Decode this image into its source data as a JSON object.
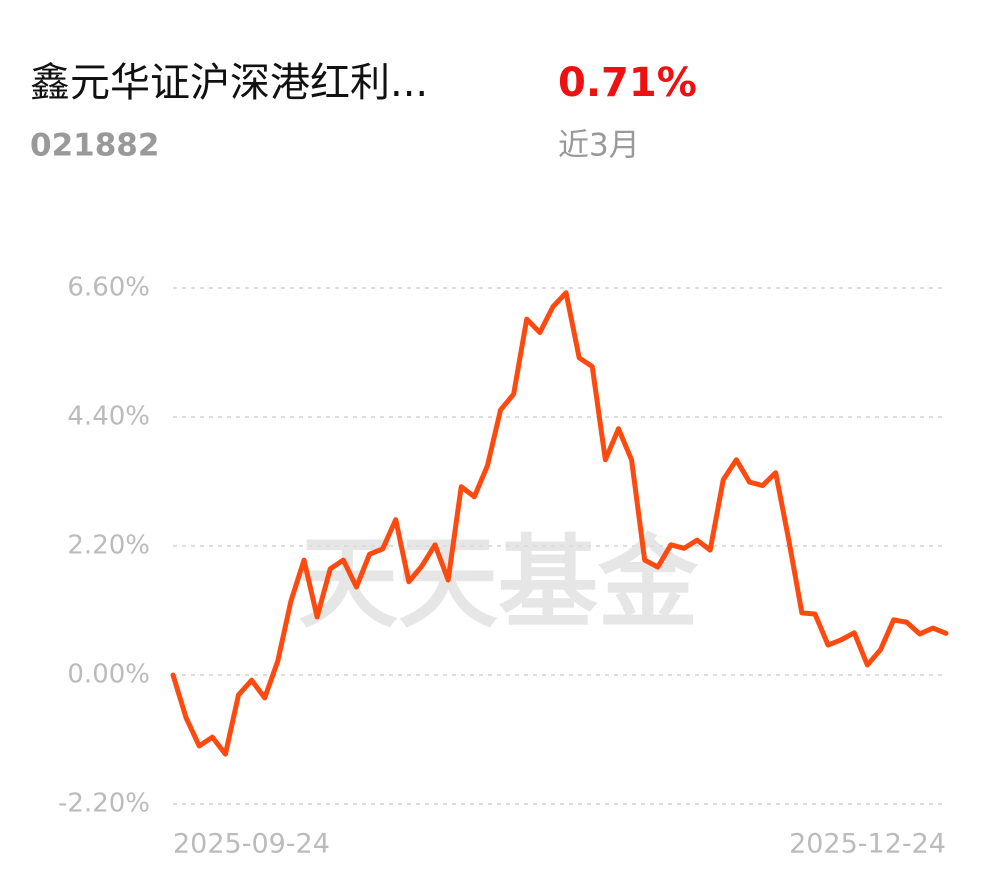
{
  "header": {
    "title": "鑫元华证沪深港红利...",
    "code": "021882",
    "return": "0.71%",
    "period": "近3月",
    "watermark": "天天基金"
  },
  "chart_data": {
    "type": "line",
    "categories": [
      "2025-09-24",
      null,
      null,
      null,
      null,
      null,
      null,
      null,
      null,
      null,
      null,
      null,
      null,
      null,
      null,
      null,
      null,
      null,
      null,
      null,
      null,
      null,
      null,
      null,
      null,
      null,
      null,
      null,
      null,
      null,
      null,
      null,
      null,
      null,
      null,
      null,
      null,
      null,
      null,
      null,
      null,
      null,
      null,
      null,
      null,
      null,
      null,
      null,
      null,
      null,
      null,
      null,
      null,
      null,
      null,
      null,
      null,
      null,
      null,
      "2025-12-24"
    ],
    "series": [
      {
        "color": "#ff4a0f",
        "values": [
          0,
          -0.73,
          -1.21,
          -1.06,
          -1.35,
          -0.34,
          -0.09,
          -0.39,
          0.24,
          1.26,
          1.96,
          0.99,
          1.81,
          1.96,
          1.5,
          2.06,
          2.15,
          2.65,
          1.59,
          1.86,
          2.22,
          1.62,
          3.21,
          3.04,
          3.57,
          4.52,
          4.79,
          6.07,
          5.84,
          6.28,
          6.52,
          5.41,
          5.26,
          3.67,
          4.2,
          3.67,
          1.96,
          1.84,
          2.22,
          2.16,
          2.3,
          2.13,
          3.33,
          3.67,
          3.29,
          3.23,
          3.45,
          2.3,
          1.06,
          1.04,
          0.51,
          0.6,
          0.72,
          0.17,
          0.43,
          0.94,
          0.9,
          0.7,
          0.8,
          0.71
        ]
      }
    ],
    "ylim": [
      -2.2,
      6.6
    ],
    "yticks": [
      {
        "value": -2.2,
        "label": "-2.20%"
      },
      {
        "value": 0,
        "label": "0.00%"
      },
      {
        "value": 2.2,
        "label": "2.20%"
      },
      {
        "value": 4.4,
        "label": "4.40%"
      },
      {
        "value": 6.6,
        "label": "6.60%"
      }
    ],
    "grid": true
  }
}
